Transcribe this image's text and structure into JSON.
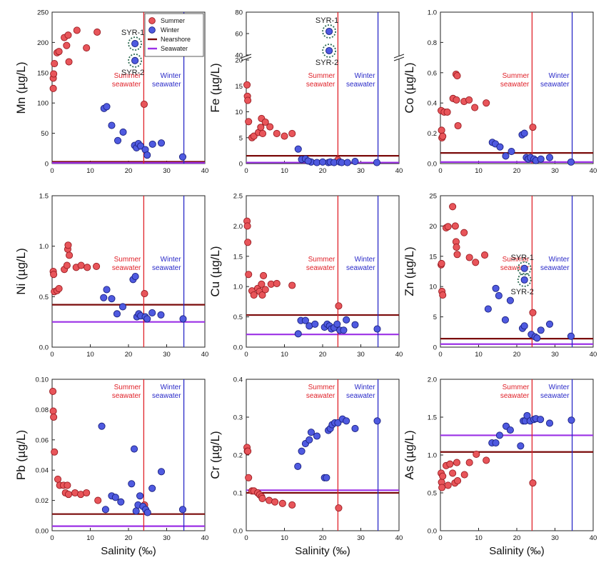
{
  "colors": {
    "summer_fill": "#e8555a",
    "summer_edge": "#9a1c22",
    "winter_fill": "#4f5ae0",
    "winter_edge": "#1a2180",
    "nearshore": "#7a0a0a",
    "seawater": "#9b30e6",
    "summer_line": "#e0222a",
    "winter_line": "#2a2ac8",
    "syr_ring": "#2e6b52"
  },
  "chart_data": [
    {
      "type": "scatter",
      "ylabel": "Mn (µg/L)",
      "xlabel": "",
      "xlim": [
        0,
        40
      ],
      "ylim": [
        0,
        250
      ],
      "xticks": [
        "0",
        "10",
        "20",
        "30",
        "40"
      ],
      "yticks": [
        0,
        50,
        100,
        150,
        200,
        250
      ],
      "ytick_labels": [
        "0",
        "50",
        "100",
        "150",
        "200",
        "250"
      ],
      "summer_x": [
        0.3,
        0.3,
        0.4,
        0.6,
        1.3,
        1.8,
        3.2,
        3.8,
        4.2,
        4.4,
        6.5,
        9.0,
        11.8,
        24.1
      ],
      "summer_y": [
        124,
        141,
        148,
        165,
        183,
        185,
        208,
        195,
        212,
        168,
        220,
        191,
        217,
        98
      ],
      "winter_x": [
        13.6,
        14.3,
        15.6,
        17.2,
        18.6,
        21.6,
        22.1,
        22.6,
        23.2,
        24.4,
        24.9,
        26.3,
        28.6,
        34.2,
        21.7,
        21.7
      ],
      "winter_y": [
        91,
        94,
        63,
        38,
        52,
        30,
        26,
        33,
        29,
        23,
        14,
        32,
        34,
        11,
        198,
        170
      ],
      "nearshore": 3,
      "seawater": 1,
      "summer_line_x": 24,
      "winter_line_x": 34.5,
      "summer_label": [
        "Summer",
        "seawater"
      ],
      "winter_label": [
        "Winter",
        "seawater"
      ],
      "syr": [
        {
          "label": "SYR-1",
          "x": 21.7,
          "y": 198
        },
        {
          "label": "SYR-2",
          "x": 21.7,
          "y": 170
        }
      ],
      "legend": [
        {
          "label": "Summer",
          "kind": "summer"
        },
        {
          "label": "Winter",
          "kind": "winter"
        },
        {
          "label": "Nearshore",
          "kind": "nearshore"
        },
        {
          "label": "Seawater",
          "kind": "seawater"
        }
      ]
    },
    {
      "type": "scatter",
      "ylabel": "Fe (µg/L)",
      "xlabel": "",
      "xlim": [
        0,
        40
      ],
      "ylim": [
        0,
        20
      ],
      "xticks": [
        "0",
        "10",
        "20",
        "30",
        "40"
      ],
      "yticks": [
        0,
        5,
        10,
        15,
        20
      ],
      "ytick_labels": [
        "0",
        "5",
        "10",
        "15",
        "20"
      ],
      "broken_axis": {
        "upper_ticks": [
          40,
          60,
          80
        ],
        "upper_range": [
          40,
          80
        ]
      },
      "summer_x": [
        0.2,
        0.3,
        0.4,
        0.6,
        1.5,
        2.0,
        3.2,
        3.8,
        4.0,
        4.3,
        5.0,
        6.2,
        8.0,
        10.0,
        12.0,
        24.0
      ],
      "summer_y": [
        15.2,
        13.0,
        12.2,
        8.1,
        5.0,
        5.3,
        6.0,
        7.0,
        8.7,
        5.8,
        8.0,
        7.1,
        5.8,
        5.3,
        5.8,
        0.7
      ],
      "winter_x": [
        13.6,
        14.5,
        15.5,
        17.0,
        18.5,
        21.5,
        22.0,
        23.0,
        24.5,
        25.0,
        26.5,
        28.5,
        34.2,
        16.2,
        20.0
      ],
      "winter_y": [
        2.8,
        0.8,
        0.9,
        0.3,
        0.2,
        0.2,
        0.3,
        0.2,
        0.3,
        0.2,
        0.2,
        0.4,
        0.2,
        0.5,
        0.3
      ],
      "upper_points": [
        {
          "x": 21.7,
          "y": 62
        },
        {
          "x": 21.7,
          "y": 44
        }
      ],
      "nearshore": 1.5,
      "seawater": 0.2,
      "summer_line_x": 24,
      "winter_line_x": 34.5,
      "summer_label": [
        "Summer",
        "seawater"
      ],
      "winter_label": [
        "Winter",
        "seawater"
      ],
      "syr": [
        {
          "label": "SYR-1",
          "x": 21.7,
          "y": 62
        },
        {
          "label": "SYR-2",
          "x": 21.7,
          "y": 44
        }
      ]
    },
    {
      "type": "scatter",
      "ylabel": "Co (µg/L)",
      "xlabel": "",
      "xlim": [
        0,
        40
      ],
      "ylim": [
        0,
        1.0
      ],
      "xticks": [
        "0",
        "10",
        "20",
        "30",
        "40"
      ],
      "yticks": [
        0,
        0.2,
        0.4,
        0.6,
        0.8,
        1.0
      ],
      "ytick_labels": [
        "0.0",
        "0.2",
        "0.4",
        "0.6",
        "0.8",
        "1.0"
      ],
      "summer_x": [
        0.2,
        0.3,
        0.4,
        0.6,
        1.0,
        1.8,
        3.3,
        4.1,
        4.2,
        4.4,
        4.6,
        6.2,
        7.5,
        9.0,
        12.0,
        24.2
      ],
      "summer_y": [
        0.35,
        0.22,
        0.17,
        0.18,
        0.34,
        0.34,
        0.43,
        0.59,
        0.42,
        0.58,
        0.25,
        0.41,
        0.42,
        0.37,
        0.4,
        0.24
      ],
      "winter_x": [
        13.6,
        14.4,
        15.6,
        17.1,
        18.6,
        21.4,
        22.0,
        22.5,
        23.0,
        23.6,
        24.5,
        25.0,
        26.3,
        28.6,
        34.2
      ],
      "winter_y": [
        0.14,
        0.13,
        0.11,
        0.05,
        0.08,
        0.19,
        0.2,
        0.04,
        0.03,
        0.04,
        0.03,
        0.02,
        0.03,
        0.04,
        0.01
      ],
      "nearshore": 0.07,
      "seawater": 0.01,
      "summer_line_x": 24,
      "winter_line_x": 34.5,
      "summer_label": [
        "Summer",
        "seawater"
      ],
      "winter_label": [
        "Winter",
        "seawater"
      ],
      "syr": []
    },
    {
      "type": "scatter",
      "ylabel": "Ni (µg/L)",
      "xlabel": "",
      "xlim": [
        0,
        40
      ],
      "ylim": [
        0,
        1.5
      ],
      "xticks": [
        "0",
        "10",
        "20",
        "30",
        "40"
      ],
      "yticks": [
        0,
        0.5,
        1.0,
        1.5
      ],
      "ytick_labels": [
        "0.0",
        "0.5",
        "1.0",
        "1.5"
      ],
      "summer_x": [
        0.3,
        0.4,
        0.6,
        1.3,
        1.8,
        3.2,
        3.9,
        4.1,
        4.2,
        4.5,
        6.3,
        7.6,
        9.2,
        11.6,
        24.2
      ],
      "summer_y": [
        0.75,
        0.72,
        0.55,
        0.56,
        0.58,
        0.77,
        0.81,
        0.97,
        1.01,
        0.91,
        0.79,
        0.81,
        0.79,
        0.8,
        0.53
      ],
      "winter_x": [
        13.5,
        14.3,
        15.6,
        17.0,
        18.5,
        21.2,
        21.8,
        22.2,
        22.7,
        23.2,
        24.4,
        24.9,
        26.2,
        28.5,
        34.3
      ],
      "winter_y": [
        0.49,
        0.57,
        0.48,
        0.33,
        0.4,
        0.67,
        0.7,
        0.3,
        0.33,
        0.31,
        0.3,
        0.28,
        0.34,
        0.32,
        0.28
      ],
      "nearshore": 0.42,
      "seawater": 0.25,
      "summer_line_x": 24,
      "winter_line_x": 34.5,
      "summer_label": [
        "Summer",
        "seawater"
      ],
      "winter_label": [
        "Winter",
        "seawater"
      ],
      "syr": []
    },
    {
      "type": "scatter",
      "ylabel": "Cu (µg/L)",
      "xlabel": "",
      "xlim": [
        0,
        40
      ],
      "ylim": [
        0,
        2.5
      ],
      "xticks": [
        "0",
        "10",
        "20",
        "30",
        "40"
      ],
      "yticks": [
        0,
        0.5,
        1.0,
        1.5,
        2.0,
        2.5
      ],
      "ytick_labels": [
        "0.0",
        "0.5",
        "1.0",
        "1.5",
        "2.0",
        "2.5"
      ],
      "summer_x": [
        0.2,
        0.3,
        0.4,
        0.6,
        1.5,
        2.0,
        3.0,
        3.5,
        4.0,
        4.2,
        4.5,
        5.0,
        6.5,
        8.0,
        12.0,
        24.2
      ],
      "summer_y": [
        2.08,
        2.0,
        1.73,
        1.2,
        0.93,
        0.86,
        0.97,
        0.92,
        1.04,
        0.86,
        1.18,
        0.95,
        1.04,
        1.05,
        1.02,
        0.68
      ],
      "winter_x": [
        13.6,
        14.3,
        15.5,
        16.5,
        18.0,
        20.5,
        21.2,
        21.8,
        22.3,
        23.0,
        23.8,
        24.5,
        25.5,
        26.2,
        28.5,
        34.3
      ],
      "winter_y": [
        0.22,
        0.44,
        0.44,
        0.35,
        0.38,
        0.33,
        0.38,
        0.35,
        0.3,
        0.32,
        0.38,
        0.28,
        0.28,
        0.45,
        0.37,
        0.3
      ],
      "nearshore": 0.53,
      "seawater": 0.21,
      "summer_line_x": 24,
      "winter_line_x": 34.5,
      "summer_label": [
        "Summer",
        "seawater"
      ],
      "winter_label": [
        "Winter",
        "seawater"
      ],
      "syr": []
    },
    {
      "type": "scatter",
      "ylabel": "Zn (µg/L)",
      "xlabel": "",
      "xlim": [
        0,
        40
      ],
      "ylim": [
        0,
        25
      ],
      "xticks": [
        "0",
        "10",
        "20",
        "30",
        "40"
      ],
      "yticks": [
        0,
        5,
        10,
        15,
        20,
        25
      ],
      "ytick_labels": [
        "0",
        "5",
        "10",
        "15",
        "20",
        "25"
      ],
      "summer_x": [
        0.2,
        0.3,
        0.4,
        0.6,
        1.5,
        2.0,
        3.2,
        3.9,
        4.1,
        4.2,
        4.4,
        6.2,
        7.6,
        9.2,
        11.6,
        24.2
      ],
      "summer_y": [
        13.6,
        13.8,
        9.2,
        8.6,
        19.7,
        19.9,
        23.2,
        20.0,
        17.4,
        16.5,
        15.3,
        18.9,
        14.8,
        14.0,
        15.2,
        5.7
      ],
      "winter_x": [
        12.5,
        14.5,
        15.3,
        17.0,
        18.3,
        21.5,
        22.0,
        23.8,
        24.8,
        25.3,
        26.3,
        28.6,
        34.2,
        22.0,
        22.0
      ],
      "winter_y": [
        6.3,
        9.7,
        8.5,
        4.5,
        7.7,
        3.1,
        3.5,
        2.1,
        1.7,
        1.5,
        2.8,
        3.8,
        1.8,
        13.0,
        11.1
      ],
      "nearshore": 1.4,
      "seawater": 0.5,
      "summer_line_x": 24,
      "winter_line_x": 34.5,
      "summer_label": [
        "Summer",
        "seawater"
      ],
      "winter_label": [
        "Winter",
        "seawater"
      ],
      "syr": [
        {
          "label": "SYR-1",
          "x": 22.0,
          "y": 13.0
        },
        {
          "label": "SYR-2",
          "x": 22.0,
          "y": 11.1
        }
      ]
    },
    {
      "type": "scatter",
      "ylabel": "Pb (µg/L)",
      "xlabel": "Salinity (‰)",
      "xlim": [
        0,
        40
      ],
      "ylim": [
        0,
        0.1
      ],
      "xticks": [
        "0",
        "10",
        "20",
        "30",
        "40"
      ],
      "yticks": [
        0,
        0.02,
        0.04,
        0.06,
        0.08,
        0.1
      ],
      "ytick_labels": [
        "0.00",
        "0.02",
        "0.04",
        "0.06",
        "0.08",
        "0.10"
      ],
      "summer_x": [
        0.2,
        0.3,
        0.4,
        0.6,
        1.5,
        2.0,
        3.0,
        3.5,
        4.0,
        4.3,
        6.0,
        7.5,
        9.0,
        12.0,
        24.2
      ],
      "summer_y": [
        0.092,
        0.079,
        0.075,
        0.052,
        0.034,
        0.03,
        0.03,
        0.025,
        0.03,
        0.024,
        0.025,
        0.024,
        0.025,
        0.02,
        0.017
      ],
      "winter_x": [
        13.0,
        14.0,
        15.6,
        16.6,
        18.0,
        20.8,
        21.5,
        22.0,
        22.5,
        23.0,
        23.8,
        24.5,
        25.0,
        26.2,
        28.6,
        34.2
      ],
      "winter_y": [
        0.069,
        0.014,
        0.023,
        0.022,
        0.019,
        0.031,
        0.054,
        0.013,
        0.017,
        0.023,
        0.016,
        0.014,
        0.012,
        0.028,
        0.039,
        0.014
      ],
      "nearshore": 0.011,
      "seawater": 0.003,
      "summer_line_x": 24,
      "winter_line_x": 34.5,
      "summer_label": [
        "Summer",
        "seawater"
      ],
      "winter_label": [
        "Winter",
        "seawater"
      ],
      "syr": []
    },
    {
      "type": "scatter",
      "ylabel": "Cr (µg/L)",
      "xlabel": "Salinity (‰)",
      "xlim": [
        0,
        40
      ],
      "ylim": [
        0,
        0.4
      ],
      "xticks": [
        "0",
        "10",
        "20",
        "30",
        "40"
      ],
      "yticks": [
        0,
        0.1,
        0.2,
        0.3,
        0.4
      ],
      "ytick_labels": [
        "0.0",
        "0.1",
        "0.2",
        "0.3",
        "0.4"
      ],
      "summer_x": [
        0.2,
        0.3,
        0.4,
        0.6,
        1.5,
        2.0,
        3.0,
        3.5,
        4.0,
        4.2,
        6.0,
        7.5,
        9.5,
        12.0,
        24.2
      ],
      "summer_y": [
        0.22,
        0.21,
        0.21,
        0.14,
        0.105,
        0.105,
        0.1,
        0.095,
        0.09,
        0.085,
        0.08,
        0.076,
        0.072,
        0.068,
        0.06
      ],
      "winter_x": [
        13.5,
        14.5,
        15.5,
        16.5,
        17.0,
        18.5,
        20.5,
        21.0,
        21.5,
        22.0,
        22.5,
        23.2,
        24.0,
        25.2,
        26.2,
        28.5,
        34.3
      ],
      "winter_y": [
        0.17,
        0.21,
        0.23,
        0.24,
        0.26,
        0.25,
        0.14,
        0.14,
        0.265,
        0.27,
        0.28,
        0.285,
        0.285,
        0.295,
        0.29,
        0.27,
        0.29
      ],
      "nearshore": 0.1,
      "seawater": 0.107,
      "summer_line_x": 24,
      "winter_line_x": 34.5,
      "summer_label": [
        "Summer",
        "seawater"
      ],
      "winter_label": [
        "Winter",
        "seawater"
      ],
      "syr": []
    },
    {
      "type": "scatter",
      "ylabel": "As (µg/L)",
      "xlabel": "Salinity (‰)",
      "xlim": [
        0,
        40
      ],
      "ylim": [
        0,
        2.0
      ],
      "xticks": [
        "0",
        "10",
        "20",
        "30",
        "40"
      ],
      "yticks": [
        0,
        0.5,
        1.0,
        1.5,
        2.0
      ],
      "ytick_labels": [
        "0.0",
        "0.5",
        "1.0",
        "1.5",
        "2.0"
      ],
      "summer_x": [
        0.2,
        0.3,
        0.4,
        0.6,
        1.5,
        2.0,
        2.5,
        3.2,
        3.8,
        4.3,
        4.5,
        6.3,
        7.6,
        9.4,
        12.0,
        24.2
      ],
      "summer_y": [
        0.76,
        0.64,
        0.57,
        0.72,
        0.86,
        0.6,
        0.88,
        0.76,
        0.63,
        0.9,
        0.66,
        0.74,
        0.9,
        1.01,
        0.93,
        0.63
      ],
      "winter_x": [
        13.5,
        14.5,
        15.5,
        17.2,
        18.3,
        21.0,
        21.7,
        22.2,
        22.7,
        23.5,
        24.5,
        25.0,
        26.2,
        28.6,
        34.3
      ],
      "winter_y": [
        1.16,
        1.16,
        1.26,
        1.38,
        1.33,
        1.12,
        1.45,
        1.45,
        1.52,
        1.45,
        1.47,
        1.48,
        1.47,
        1.42,
        1.46
      ],
      "nearshore": 1.04,
      "seawater": 1.26,
      "summer_line_x": 24,
      "winter_line_x": 34.5,
      "summer_label": [
        "Summer",
        "seawater"
      ],
      "winter_label": [
        "Winter",
        "seawater"
      ],
      "syr": []
    }
  ]
}
